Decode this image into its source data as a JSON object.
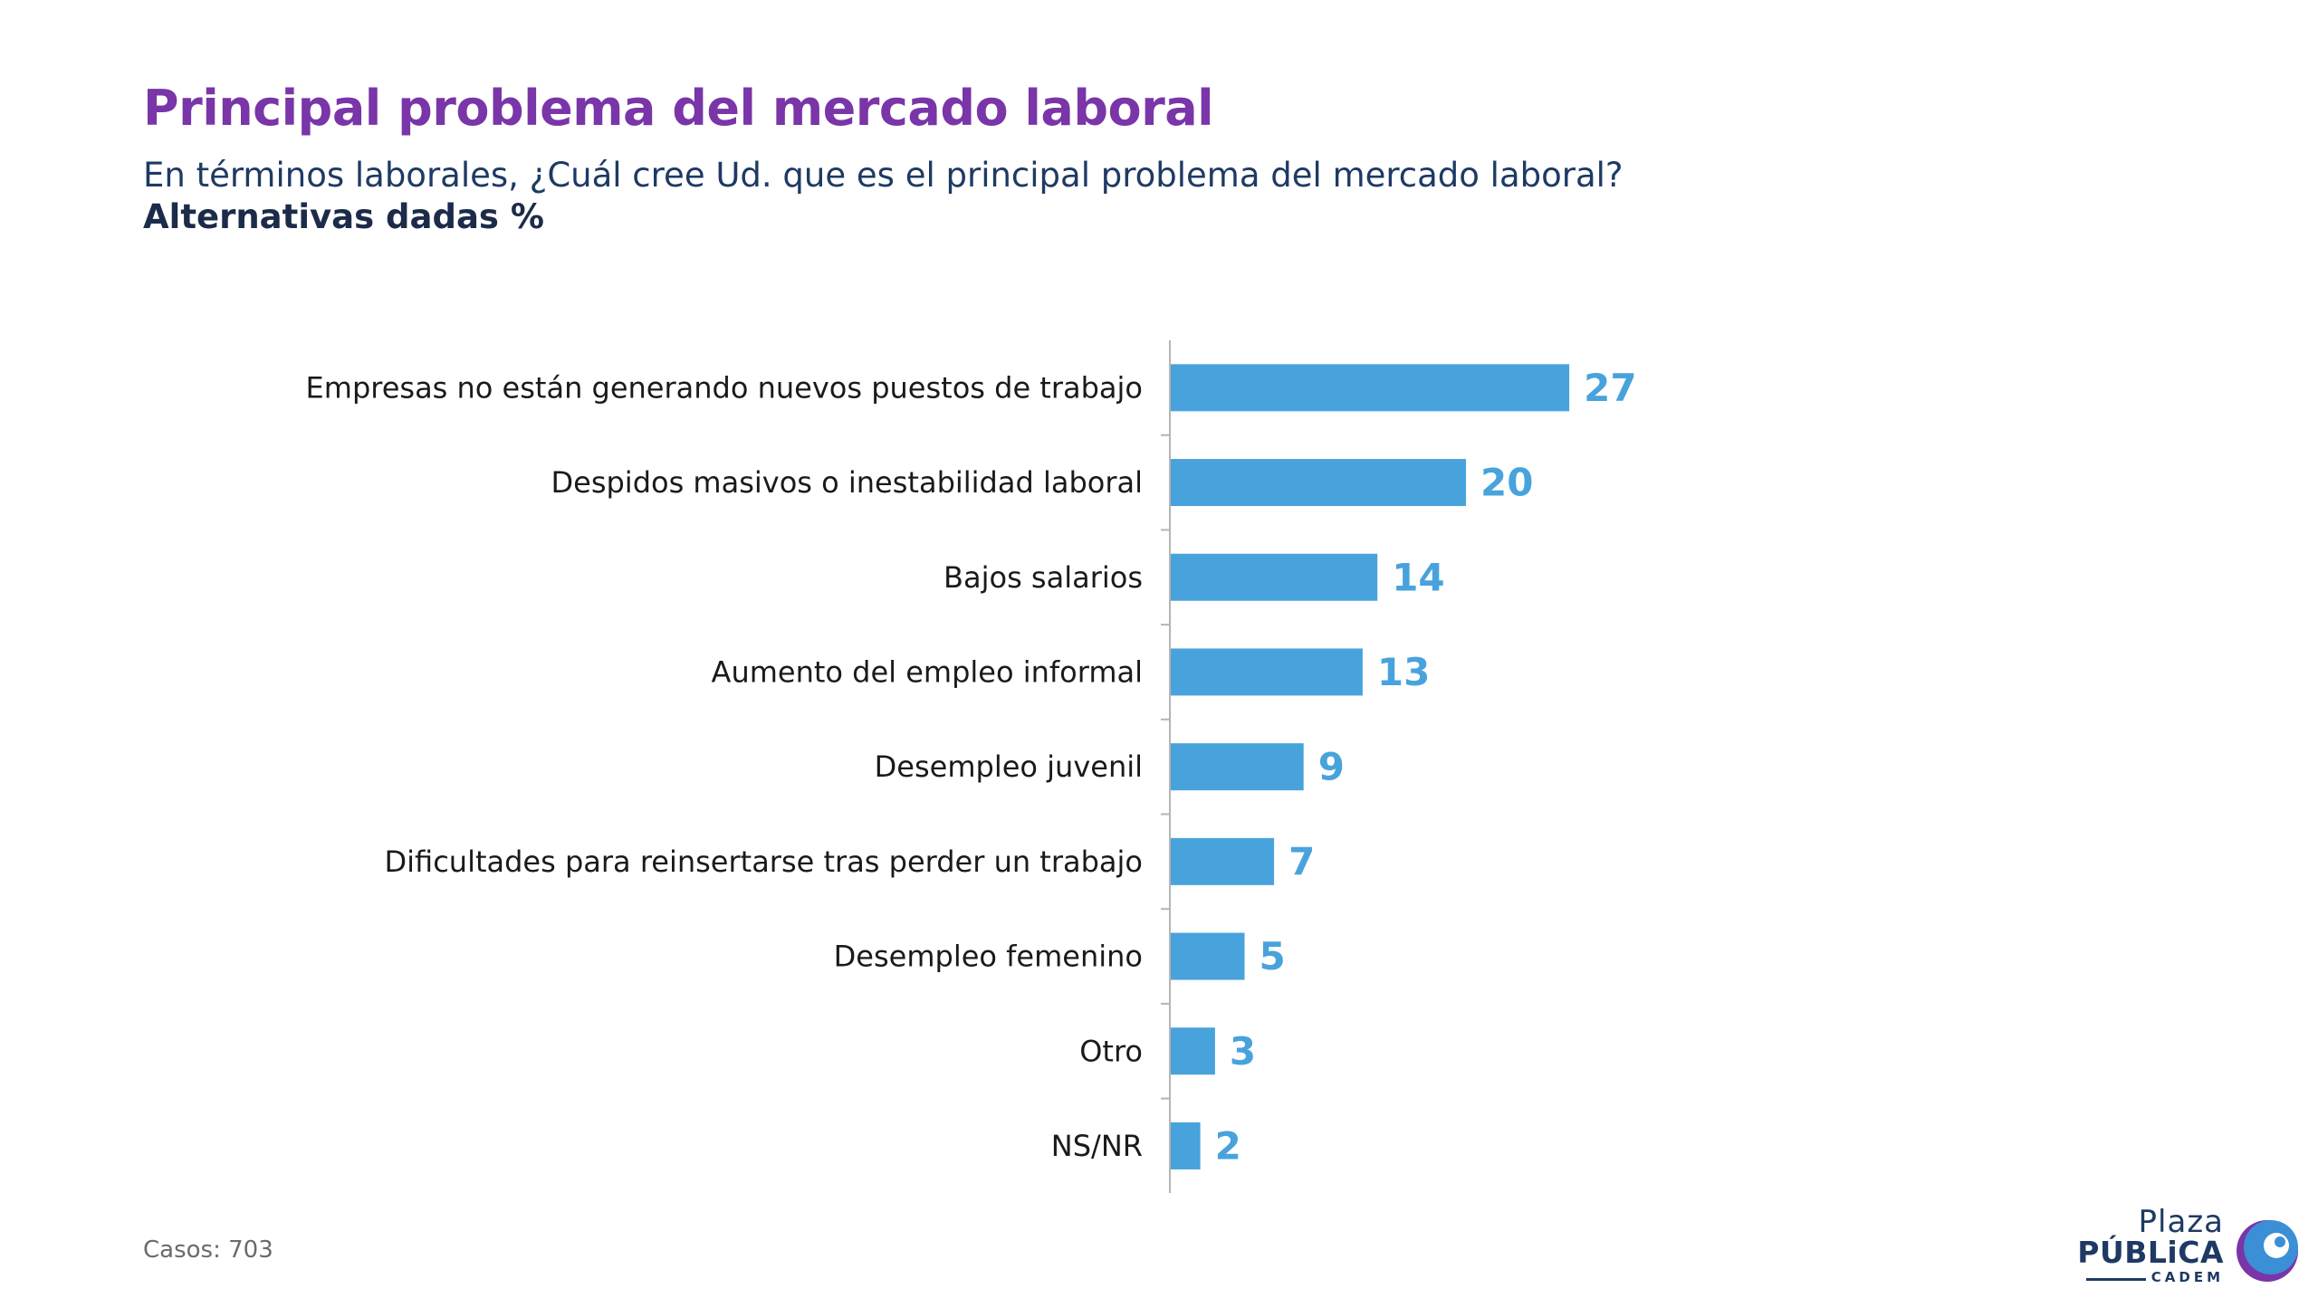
{
  "title": "Principal problema del mercado laboral",
  "subtitle": "En términos laborales, ¿Cuál cree Ud. que es el principal problema del mercado laboral?",
  "subtitle2": "Alternativas dadas %",
  "footnote": "Casos: 703",
  "logo": {
    "line1": "Plaza",
    "line2": "PÚBLiCA",
    "line3": "CADEM"
  },
  "colors": {
    "bar": "#48a3dc",
    "value_label": "#48a3dc",
    "title": "#7a35a8",
    "axis": "#b5b5b5"
  },
  "chart_data": {
    "type": "bar",
    "orientation": "horizontal",
    "categories": [
      "Empresas no están generando nuevos puestos de trabajo",
      "Despidos masivos o inestabilidad laboral",
      "Bajos salarios",
      "Aumento del empleo informal",
      "Desempleo juvenil",
      "Dificultades para reinsertarse tras perder un trabajo",
      "Desempleo femenino",
      "Otro",
      "NS/NR"
    ],
    "values": [
      27,
      20,
      14,
      13,
      9,
      7,
      5,
      3,
      2
    ],
    "data_labels": [
      "27",
      "20",
      "14",
      "13",
      "9",
      "7",
      "5",
      "3",
      "2"
    ],
    "xlim": [
      0,
      27
    ],
    "grid": false,
    "legend": "none"
  }
}
